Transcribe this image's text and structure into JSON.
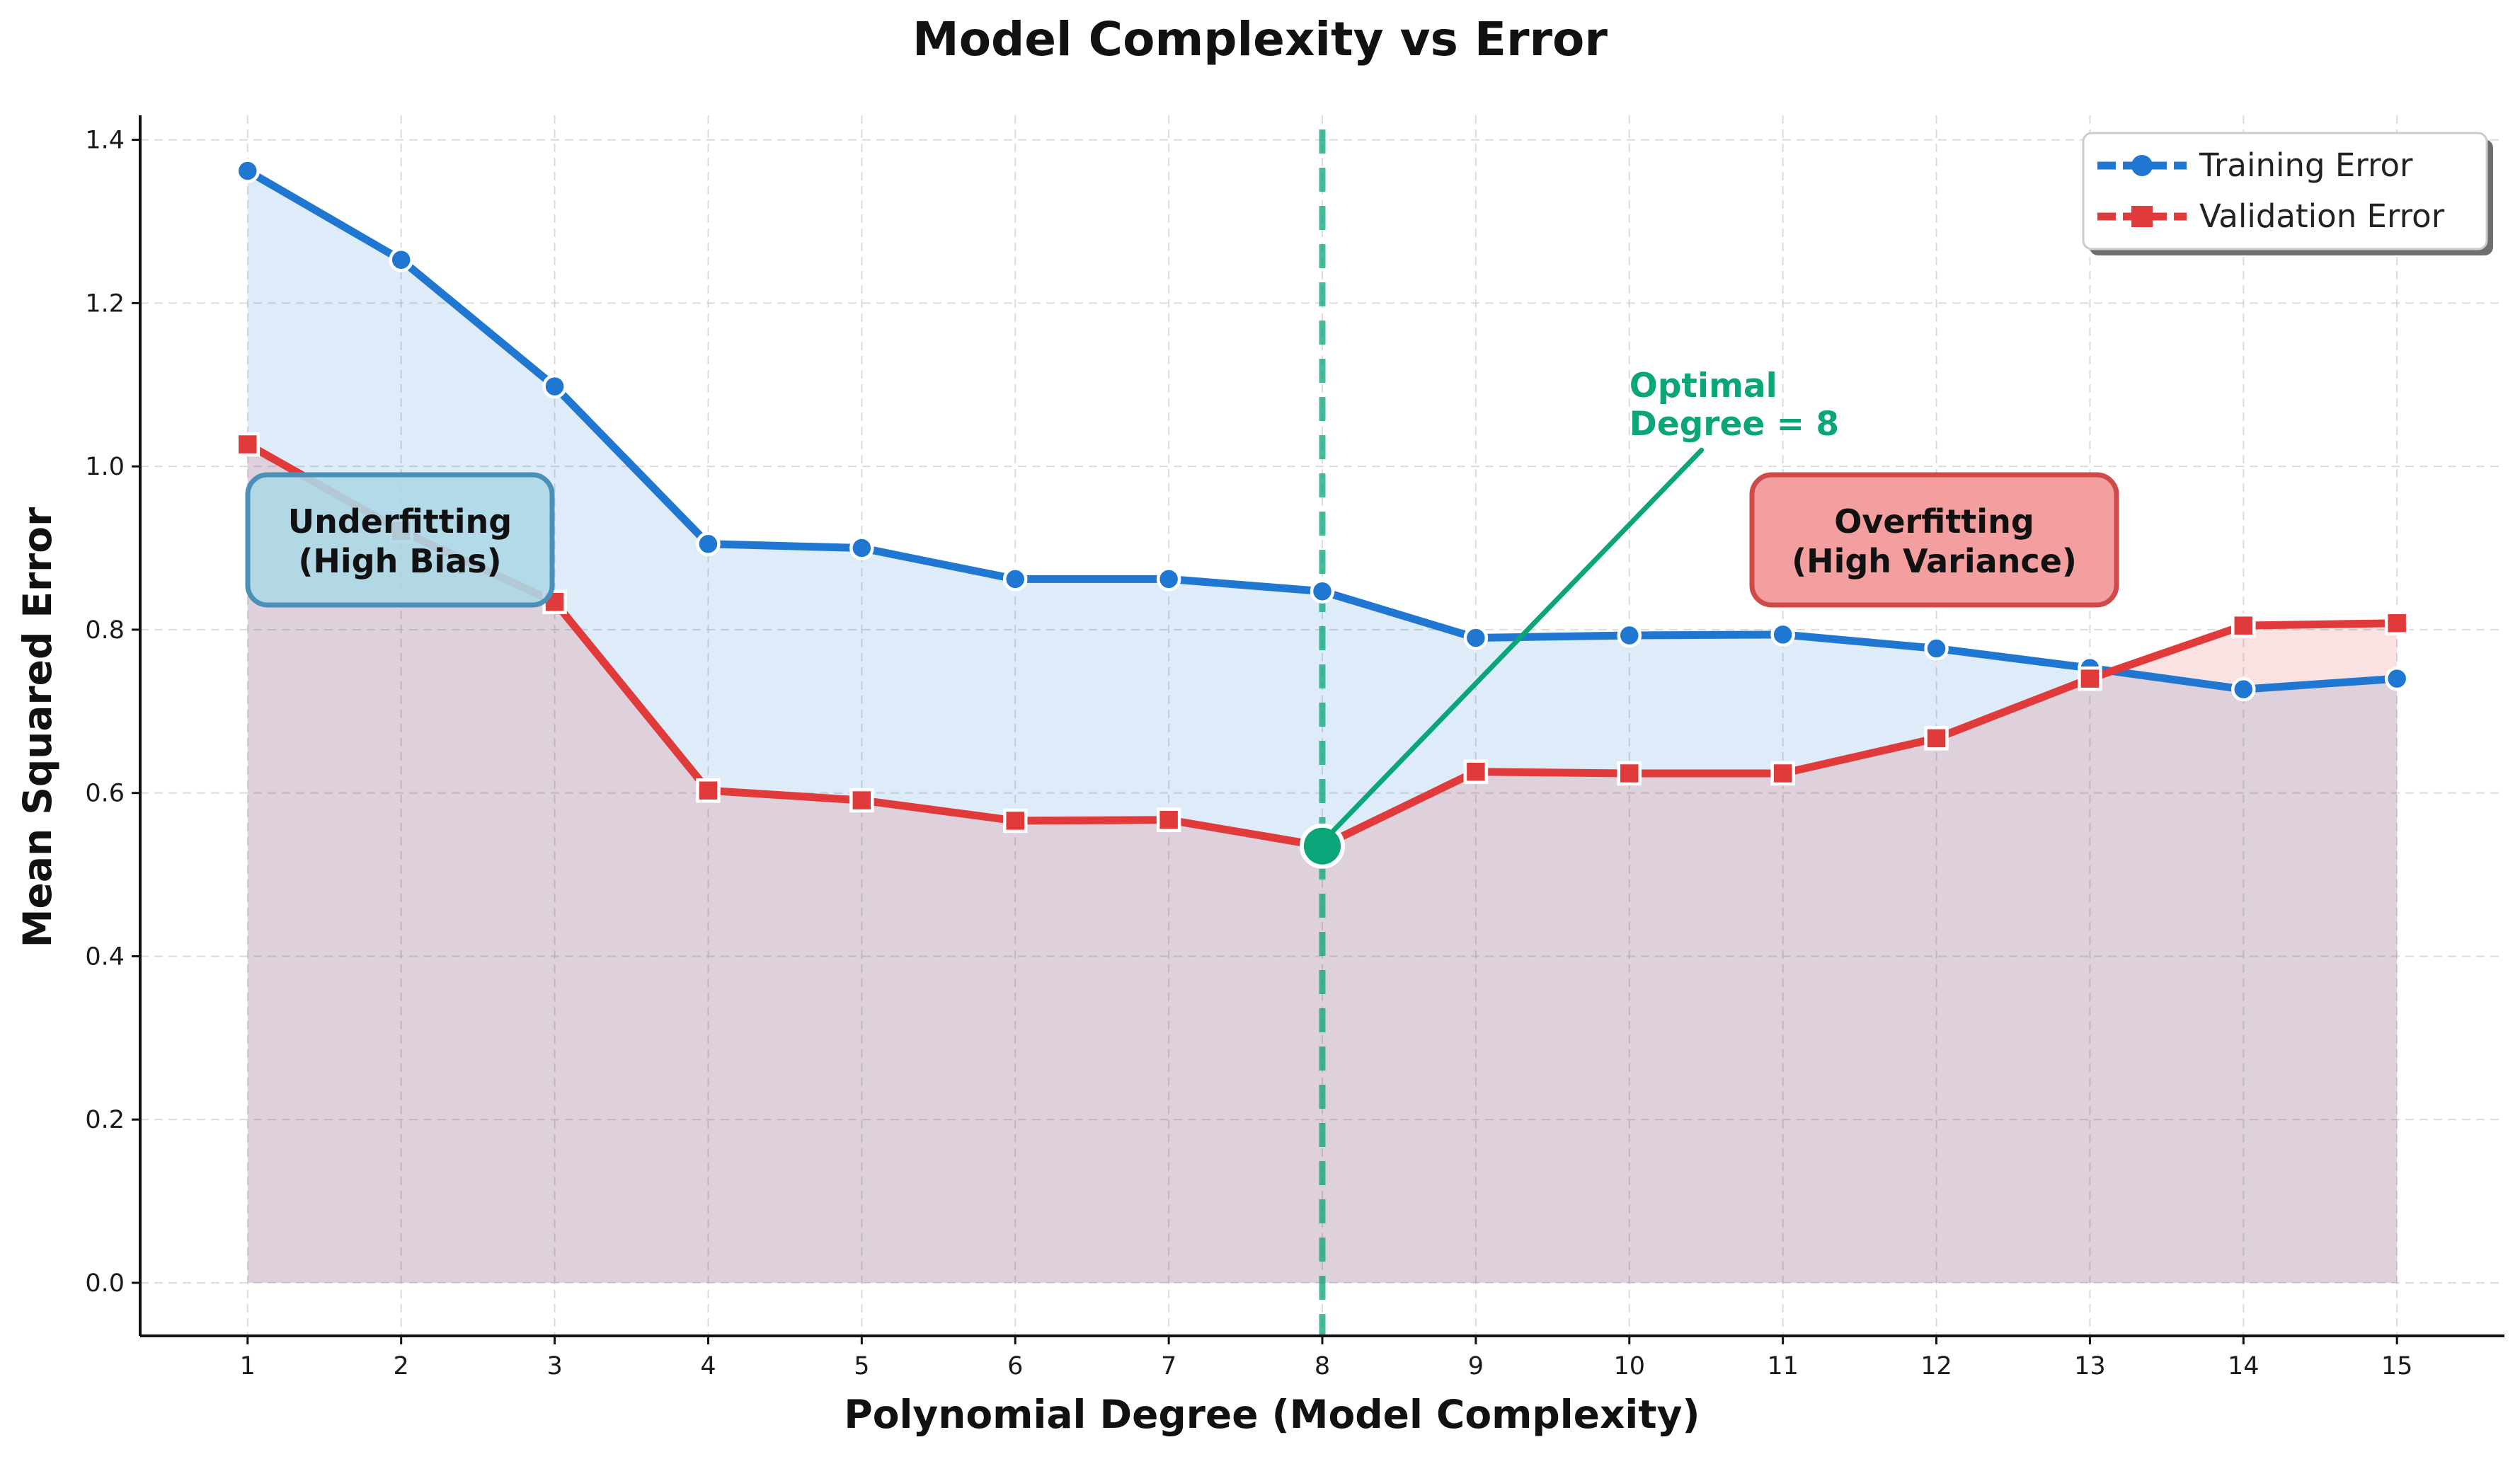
{
  "chart_data": {
    "type": "line",
    "title": "Model Complexity vs Error",
    "xlabel": "Polynomial Degree (Model Complexity)",
    "ylabel": "Mean Squared Error",
    "x": [
      1,
      2,
      3,
      4,
      5,
      6,
      7,
      8,
      9,
      10,
      11,
      12,
      13,
      14,
      15
    ],
    "xlim": [
      0.3,
      15.7
    ],
    "ylim": [
      -0.065,
      1.43
    ],
    "yticks": [
      0.0,
      0.2,
      0.4,
      0.6,
      0.8,
      1.0,
      1.2,
      1.4
    ],
    "ytick_labels": [
      "0.0",
      "0.2",
      "0.4",
      "0.6",
      "0.8",
      "1.0",
      "1.2",
      "1.4"
    ],
    "xtick_labels": [
      "1",
      "2",
      "3",
      "4",
      "5",
      "6",
      "7",
      "8",
      "9",
      "10",
      "11",
      "12",
      "13",
      "14",
      "15"
    ],
    "grid": true,
    "legend_position": "top-right",
    "series": [
      {
        "name": "Training Error",
        "color": "#1f77d2",
        "marker": "circle",
        "values": [
          1.362,
          1.253,
          1.098,
          0.905,
          0.9,
          0.862,
          0.862,
          0.847,
          0.79,
          0.793,
          0.794,
          0.777,
          0.753,
          0.727,
          0.74
        ]
      },
      {
        "name": "Validation Error",
        "color": "#e03a3a",
        "marker": "square",
        "values": [
          1.027,
          0.921,
          0.834,
          0.603,
          0.591,
          0.566,
          0.567,
          0.535,
          0.626,
          0.624,
          0.624,
          0.667,
          0.74,
          0.805,
          0.808
        ]
      }
    ],
    "annotations": {
      "optimal": {
        "line1": "Optimal",
        "line2": "Degree = 8",
        "x": 8,
        "y": 0.535,
        "text_x": 10,
        "text_y": 1.04,
        "color": "#0aa67a"
      },
      "underfitting": {
        "line1": "Underfitting",
        "line2": "(High Bias)",
        "fill": "#add8e6",
        "stroke": "#4a90b8"
      },
      "overfitting": {
        "line1": "Overfitting",
        "line2": "(High Variance)",
        "fill": "#f29a9a",
        "stroke": "#d04a4a"
      }
    }
  }
}
